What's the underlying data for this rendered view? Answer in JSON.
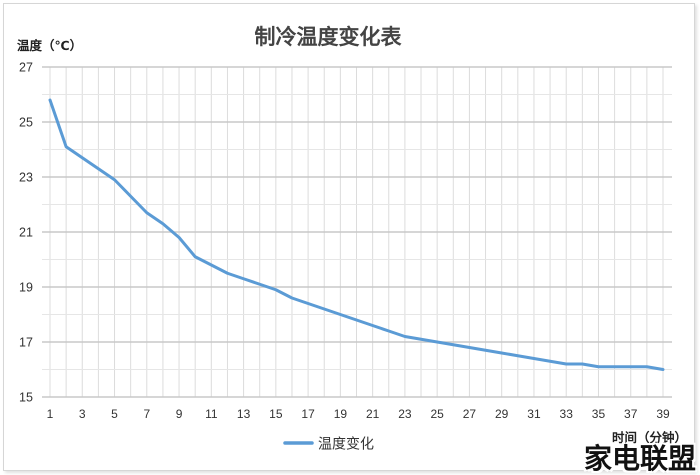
{
  "chart_data": {
    "type": "line",
    "title": "制冷温度变化表",
    "xlabel": "时间（分钟）",
    "ylabel": "温度（℃）",
    "x_tick_labels": [
      "1",
      "3",
      "5",
      "7",
      "9",
      "11",
      "13",
      "15",
      "17",
      "19",
      "21",
      "23",
      "25",
      "27",
      "29",
      "31",
      "33",
      "35",
      "37",
      "39"
    ],
    "y_ticks": [
      15,
      17,
      19,
      21,
      23,
      25,
      27
    ],
    "xlim": [
      1,
      39
    ],
    "ylim": [
      15,
      27
    ],
    "grid": true,
    "legend": "bottom",
    "series": [
      {
        "name": "温度变化",
        "color": "#5b9bd5",
        "x": [
          1,
          2,
          3,
          4,
          5,
          6,
          7,
          8,
          9,
          10,
          11,
          12,
          13,
          14,
          15,
          16,
          17,
          18,
          19,
          20,
          21,
          22,
          23,
          24,
          25,
          26,
          27,
          28,
          29,
          30,
          31,
          32,
          33,
          34,
          35,
          36,
          37,
          38,
          39
        ],
        "y": [
          25.8,
          24.1,
          23.7,
          23.3,
          22.9,
          22.3,
          21.7,
          21.3,
          20.8,
          20.1,
          19.8,
          19.5,
          19.3,
          19.1,
          18.9,
          18.6,
          18.4,
          18.2,
          18.0,
          17.8,
          17.6,
          17.4,
          17.2,
          17.1,
          17.0,
          16.9,
          16.8,
          16.7,
          16.6,
          16.5,
          16.4,
          16.3,
          16.2,
          16.2,
          16.1,
          16.1,
          16.1,
          16.1,
          16.0
        ]
      }
    ]
  },
  "watermark": "家电联盟"
}
